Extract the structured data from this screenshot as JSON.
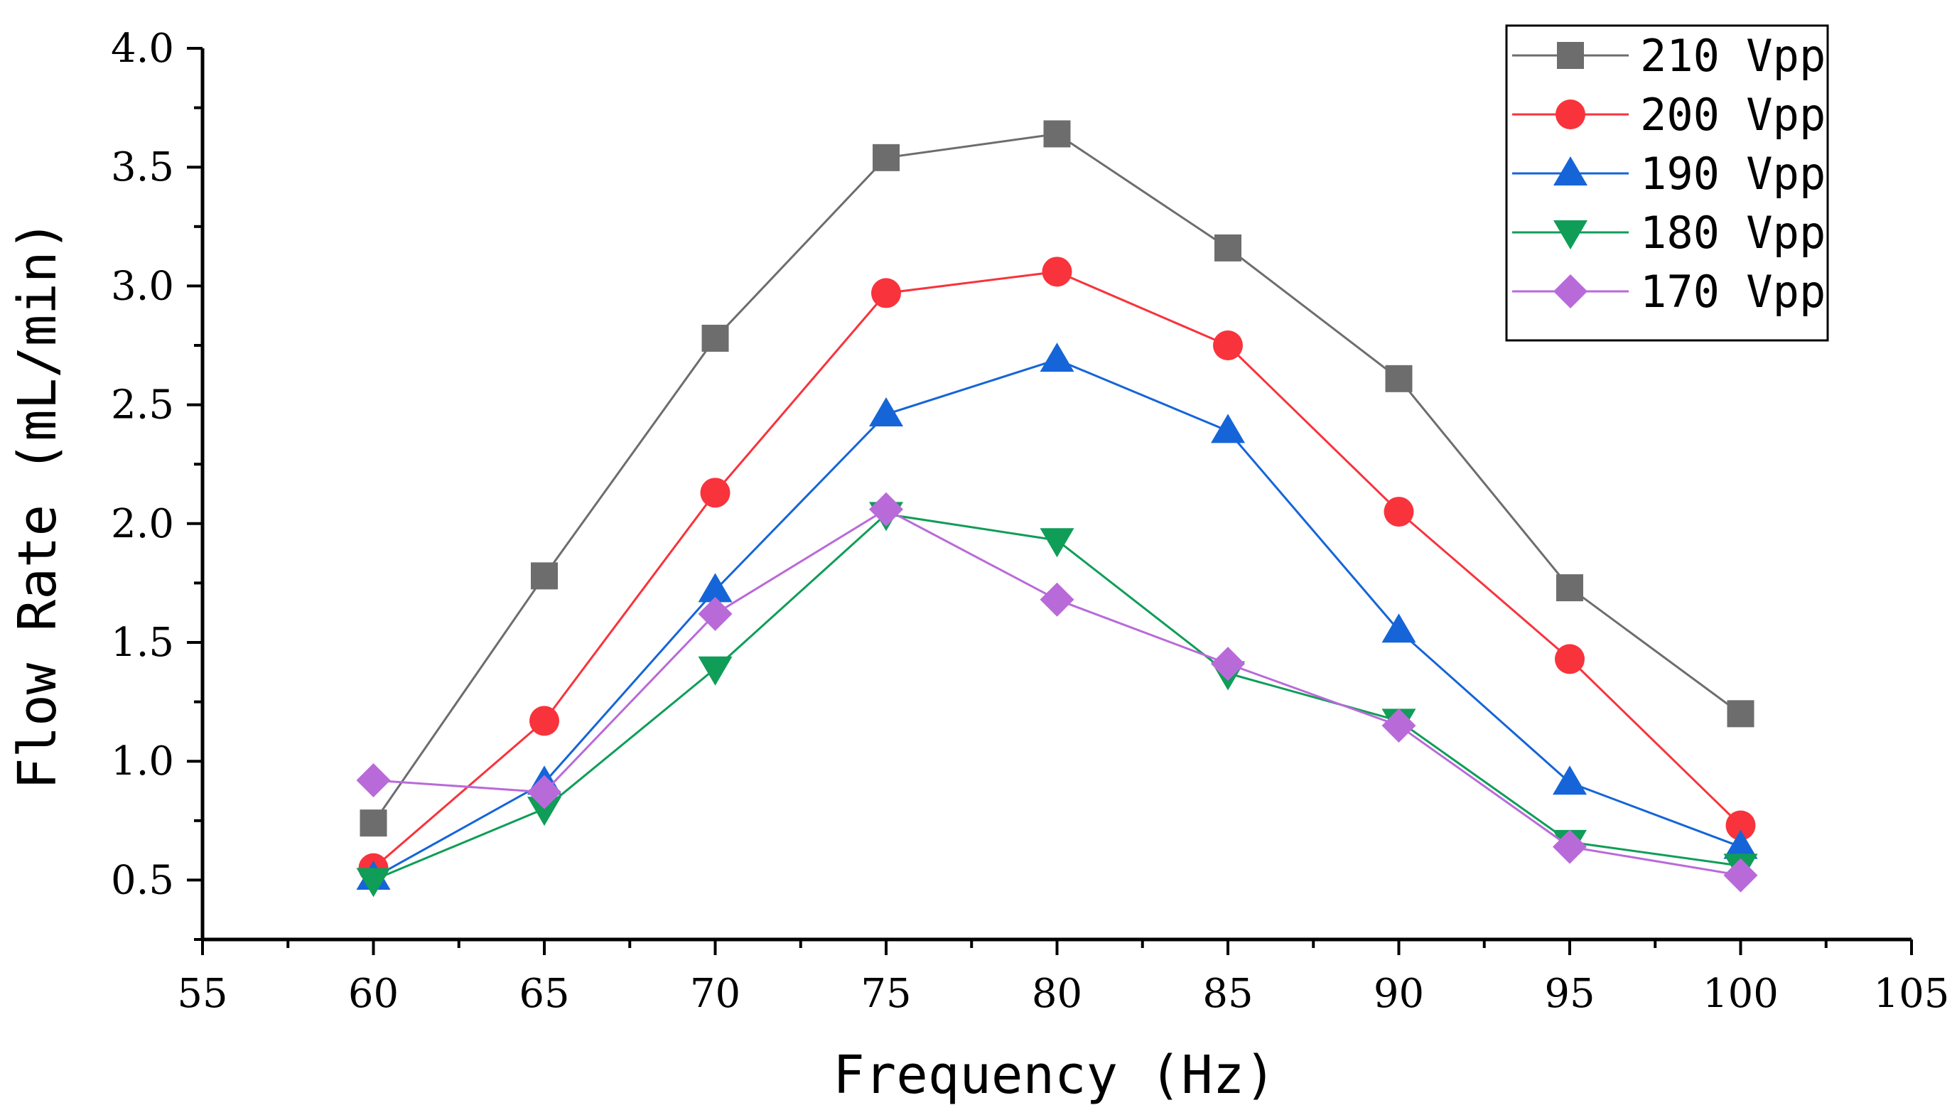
{
  "chart_data": {
    "type": "line",
    "title": "",
    "xlabel": "Frequency (Hz)",
    "ylabel": "Flow Rate (mL/min)",
    "xlim": [
      55,
      105
    ],
    "ylim": [
      0.25,
      4.0
    ],
    "x_ticks": [
      "55",
      "60",
      "65",
      "70",
      "75",
      "80",
      "85",
      "90",
      "95",
      "100",
      "105"
    ],
    "y_ticks": [
      "0.5",
      "1.0",
      "1.5",
      "2.0",
      "2.5",
      "3.0",
      "3.5",
      "4.0"
    ],
    "x": [
      60,
      65,
      70,
      75,
      80,
      85,
      90,
      95,
      100
    ],
    "legend_position": "top-right",
    "series": [
      {
        "name": "210 Vpp",
        "color": "#6d6d6d",
        "marker": "square",
        "values": [
          0.74,
          1.78,
          2.78,
          3.54,
          3.64,
          3.16,
          2.61,
          1.73,
          1.2
        ]
      },
      {
        "name": "200 Vpp",
        "color": "#f8333c",
        "marker": "circle",
        "values": [
          0.55,
          1.17,
          2.13,
          2.97,
          3.06,
          2.75,
          2.05,
          1.43,
          0.73
        ]
      },
      {
        "name": "190 Vpp",
        "color": "#1565d8",
        "marker": "triangle-up",
        "values": [
          0.51,
          0.91,
          1.72,
          2.46,
          2.69,
          2.39,
          1.55,
          0.91,
          0.64
        ]
      },
      {
        "name": "180 Vpp",
        "color": "#0f9d58",
        "marker": "triangle-down",
        "values": [
          0.5,
          0.8,
          1.39,
          2.04,
          1.93,
          1.37,
          1.17,
          0.66,
          0.56
        ]
      },
      {
        "name": "170 Vpp",
        "color": "#b96ad9",
        "marker": "diamond",
        "values": [
          0.92,
          0.87,
          1.62,
          2.06,
          1.68,
          1.41,
          1.15,
          0.64,
          0.52
        ]
      }
    ]
  }
}
